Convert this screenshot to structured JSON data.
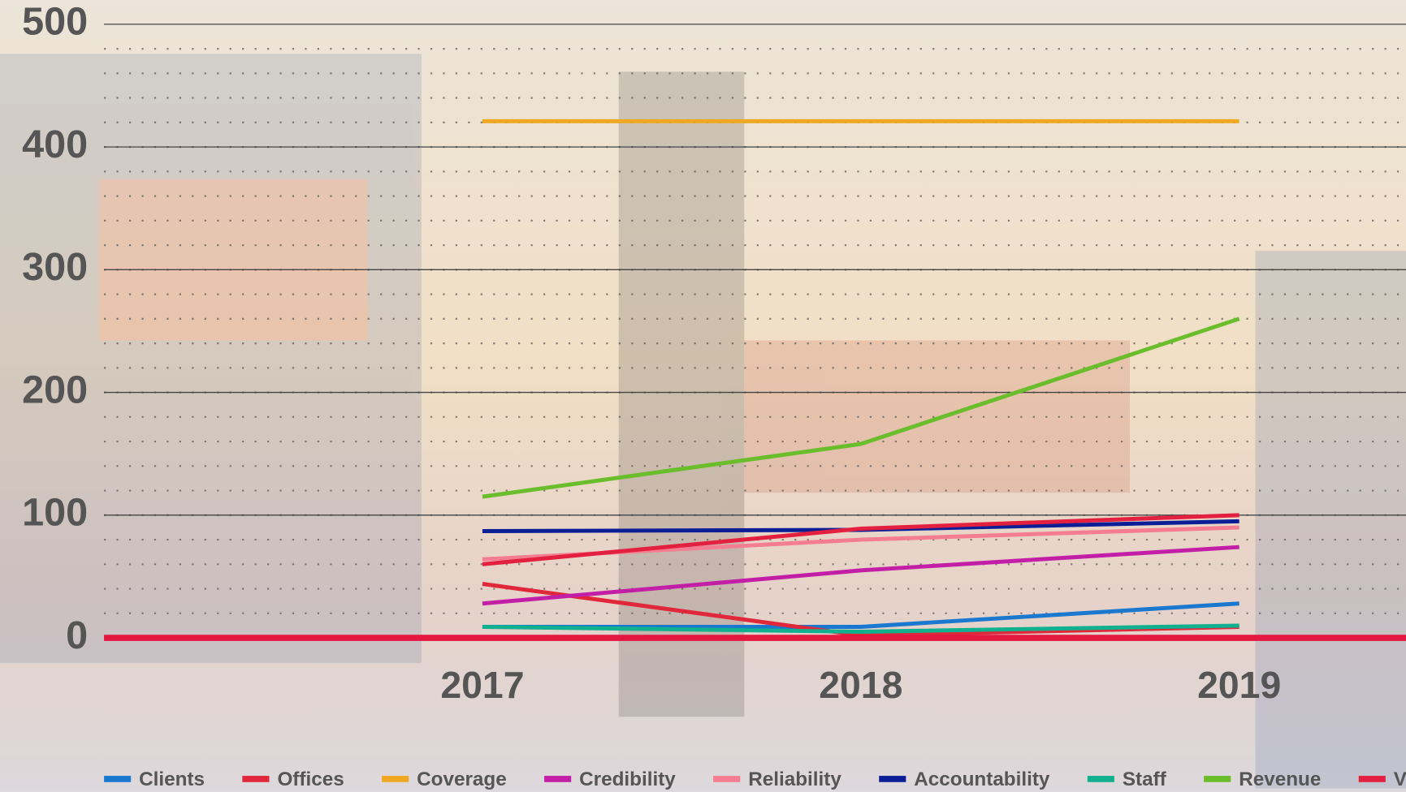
{
  "chart_data": {
    "type": "line",
    "categories": [
      "2017",
      "2018",
      "2019"
    ],
    "series": [
      {
        "name": "Clients",
        "color": "#1a78cf",
        "values": [
          9,
          9,
          28
        ]
      },
      {
        "name": "Offices",
        "color": "#e0283a",
        "values": [
          44,
          2,
          9
        ]
      },
      {
        "name": "Coverage",
        "color": "#f0a823",
        "values": [
          421,
          421,
          421
        ]
      },
      {
        "name": "Credibility",
        "color": "#c21fa6",
        "values": [
          28,
          55,
          74
        ]
      },
      {
        "name": "Reliability",
        "color": "#f47d92",
        "values": [
          64,
          80,
          90
        ]
      },
      {
        "name": "Accountability",
        "color": "#0c1e96",
        "values": [
          87,
          88,
          95
        ]
      },
      {
        "name": "Staff",
        "color": "#11b08f",
        "values": [
          9,
          5,
          10
        ]
      },
      {
        "name": "Revenue",
        "color": "#6abd2b",
        "values": [
          115,
          158,
          260
        ]
      },
      {
        "name": "Volume",
        "color": "#e3203f",
        "values": [
          60,
          89,
          100
        ]
      }
    ],
    "ylim": [
      0,
      500
    ],
    "yticks": [
      0,
      100,
      200,
      300,
      400,
      500
    ],
    "grid": true
  }
}
